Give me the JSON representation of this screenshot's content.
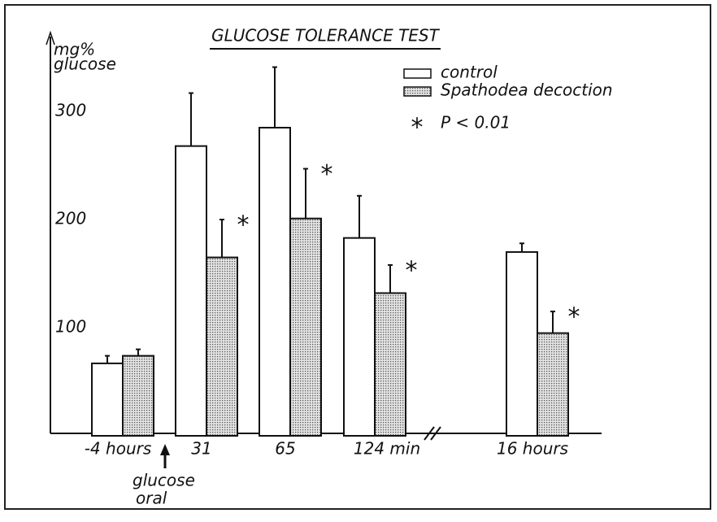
{
  "chart_data": {
    "type": "bar",
    "title": "GLUCOSE TOLERANCE TEST",
    "y_label": [
      "mg%",
      "glucose"
    ],
    "annotation": [
      "glucose",
      "oral"
    ],
    "categories": [
      "-4 hours",
      "31",
      "65",
      "124 min",
      "16 hours"
    ],
    "series": [
      {
        "name": "control",
        "color": "#ffffff",
        "values": [
          67,
          268,
          285,
          183,
          170
        ],
        "errors": [
          7,
          49,
          56,
          39,
          8
        ]
      },
      {
        "name": "Spathodea decoction",
        "color": "#bdbdbd",
        "values": [
          74,
          165,
          201,
          132,
          95
        ],
        "errors": [
          6,
          35,
          46,
          26,
          20
        ],
        "significant": [
          false,
          true,
          true,
          true,
          true
        ]
      }
    ],
    "significance": {
      "symbol": "*",
      "label": "P < 0.01"
    },
    "ylim": [
      0,
      370
    ],
    "yticks": [
      100,
      200,
      300
    ],
    "grid": false
  }
}
